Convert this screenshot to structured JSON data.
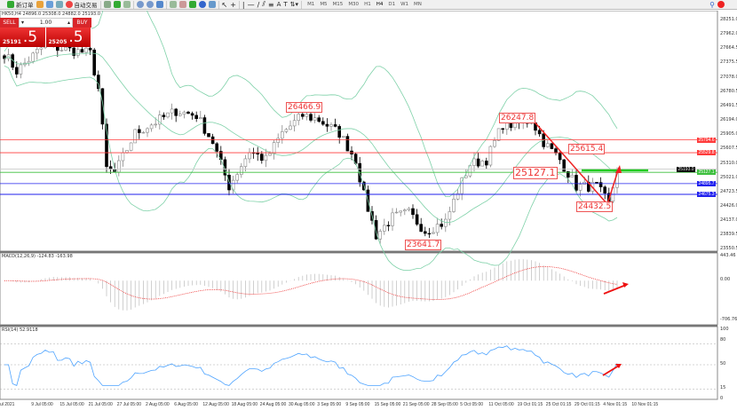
{
  "toolbar": {
    "new_order": "新订单",
    "auto_trading": "自动交易",
    "timeframes": [
      "M1",
      "M5",
      "M15",
      "M30",
      "H1",
      "H4",
      "D1",
      "W1",
      "MN"
    ],
    "active_timeframe": "H4"
  },
  "info_line": "HK50,H4  24896.0 25308.0 24882.0 25193.0",
  "trade_panel": {
    "sell": "SELL",
    "buy": "BUY",
    "lot": "1.00",
    "sell_price_small": "25191",
    "sell_price_big": ".5",
    "buy_price_small": "25205",
    "buy_price_big": ".5",
    "color": "#d8262a"
  },
  "price_axis": [
    "28251.0",
    "27962.0",
    "27664.5",
    "27375.5",
    "27078.0",
    "26780.5",
    "26491.5",
    "26194.0",
    "25905.0",
    "25607.5",
    "25310.0",
    "25021.0",
    "24723.5",
    "24426.0",
    "24137.0",
    "23839.5",
    "23550.5"
  ],
  "levels": [
    {
      "price": 25794.6,
      "label": "25794.6",
      "color": "#ff3b3b"
    },
    {
      "price": 25529.8,
      "label": "25529.8",
      "color": "#ff3b3b"
    },
    {
      "price": 25193.0,
      "label": "25193.0",
      "color": "#000000"
    },
    {
      "price": 25127.1,
      "label": "25127.1",
      "color": "#3cbf3c"
    },
    {
      "price": 24895.7,
      "label": "24895.7",
      "color": "#2222ee"
    },
    {
      "price": 24675.3,
      "label": "24675.3",
      "color": "#2222ee"
    }
  ],
  "annotations": [
    "26466.9",
    "26247.8",
    "25615.4",
    "25127.1",
    "24432.5",
    "23641.7"
  ],
  "macd": {
    "title": "MACD(12,26,9) -124.83 -163.98",
    "axis": [
      "443.46",
      "0.00",
      "-706.76"
    ],
    "max": 443.46,
    "min": -706.76
  },
  "rsi": {
    "title": "RSI(14) 52.9118",
    "axis": [
      "100",
      "80",
      "50",
      "15",
      "0"
    ],
    "levels": [
      80,
      50,
      15
    ]
  },
  "time_axis": [
    "ul 2021",
    "9 Jul 05:00",
    "15 Jul 05:00",
    "21 Jul 05:00",
    "27 Jul 05:00",
    "2 Aug 05:00",
    "6 Aug 05:00",
    "12 Aug 05:00",
    "18 Aug 05:00",
    "24 Aug 05:00",
    "30 Aug 05:00",
    "3 Sep 05:00",
    "9 Sep 05:00",
    "15 Sep 05:00",
    "21 Sep 05:00",
    "28 Sep 05:00",
    "5 Oct 05:00",
    "11 Oct 05:00",
    "19 Oct 01:15",
    "25 Oct 01:15",
    "29 Oct 01:15",
    "4 Nov 01:15",
    "10 Nov 01:15"
  ],
  "chart_data": {
    "type": "candlestick",
    "symbol": "HK50",
    "timeframe": "H4",
    "ylim": [
      23550.5,
      28251.0
    ],
    "price_path": [
      [
        0,
        27571
      ],
      [
        3,
        27207
      ],
      [
        10,
        27754
      ],
      [
        14,
        27663
      ],
      [
        21,
        27571
      ],
      [
        23,
        26843
      ],
      [
        25,
        25203
      ],
      [
        27,
        25112
      ],
      [
        32,
        25932
      ],
      [
        36,
        26114
      ],
      [
        42,
        26388
      ],
      [
        47,
        26296
      ],
      [
        51,
        25750
      ],
      [
        55,
        24839
      ],
      [
        60,
        25567
      ],
      [
        64,
        25385
      ],
      [
        68,
        25932
      ],
      [
        73,
        26296
      ],
      [
        77,
        26205
      ],
      [
        82,
        25932
      ],
      [
        86,
        25385
      ],
      [
        88,
        24657
      ],
      [
        91,
        23837
      ],
      [
        95,
        24201
      ],
      [
        99,
        24293
      ],
      [
        103,
        23928
      ],
      [
        108,
        24110
      ],
      [
        111,
        24748
      ],
      [
        114,
        25294
      ],
      [
        118,
        25385
      ],
      [
        122,
        26114
      ],
      [
        125,
        26114
      ],
      [
        129,
        26205
      ],
      [
        132,
        25750
      ],
      [
        136,
        25385
      ],
      [
        140,
        24839
      ],
      [
        145,
        24839
      ],
      [
        148,
        24475
      ],
      [
        150,
        25193
      ]
    ],
    "indicators": [
      "Bollinger Bands(20,2)",
      "MACD(12,26,9)",
      "RSI(14)"
    ]
  }
}
